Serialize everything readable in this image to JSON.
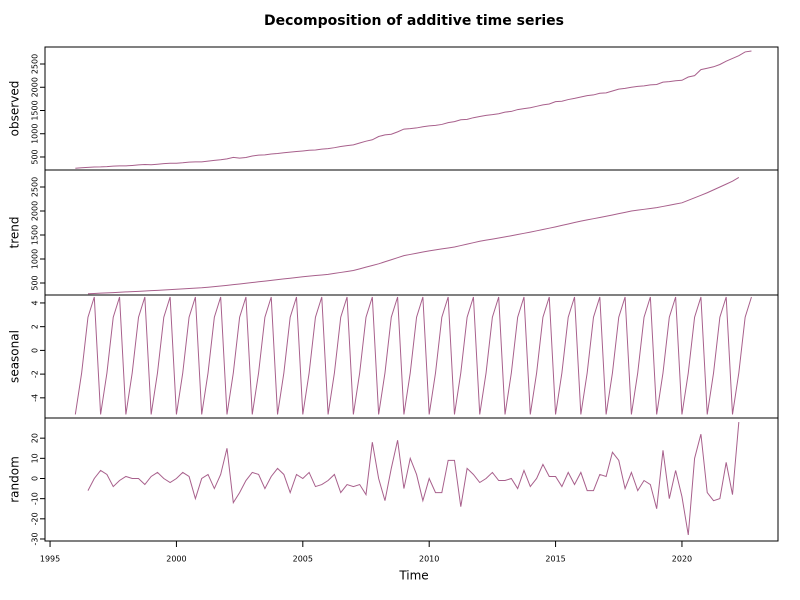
{
  "chart_data": {
    "type": "line",
    "title": "Decomposition of additive time series",
    "xlabel": "Time",
    "color": "#a8608c",
    "x": [
      1996,
      1996.25,
      1996.5,
      1996.75,
      1997,
      1997.25,
      1997.5,
      1997.75,
      1998,
      1998.25,
      1998.5,
      1998.75,
      1999,
      1999.25,
      1999.5,
      1999.75,
      2000,
      2000.25,
      2000.5,
      2000.75,
      2001,
      2001.25,
      2001.5,
      2001.75,
      2002,
      2002.25,
      2002.5,
      2002.75,
      2003,
      2003.25,
      2003.5,
      2003.75,
      2004,
      2004.25,
      2004.5,
      2004.75,
      2005,
      2005.25,
      2005.5,
      2005.75,
      2006,
      2006.25,
      2006.5,
      2006.75,
      2007,
      2007.25,
      2007.5,
      2007.75,
      2008,
      2008.25,
      2008.5,
      2008.75,
      2009,
      2009.25,
      2009.5,
      2009.75,
      2010,
      2010.25,
      2010.5,
      2010.75,
      2011,
      2011.25,
      2011.5,
      2011.75,
      2012,
      2012.25,
      2012.5,
      2012.75,
      2013,
      2013.25,
      2013.5,
      2013.75,
      2014,
      2014.25,
      2014.5,
      2014.75,
      2015,
      2015.25,
      2015.5,
      2015.75,
      2016,
      2016.25,
      2016.5,
      2016.75,
      2017,
      2017.25,
      2017.5,
      2017.75,
      2018,
      2018.25,
      2018.5,
      2018.75,
      2019,
      2019.25,
      2019.5,
      2019.75,
      2020,
      2020.25,
      2020.5,
      2020.75,
      2021,
      2021.25,
      2021.5,
      2021.75,
      2022,
      2022.25,
      2022.5,
      2022.75
    ],
    "xlim": [
      1994.8,
      2023.8
    ],
    "xticks": [
      1995,
      2000,
      2005,
      2010,
      2015,
      2020
    ],
    "panels": [
      {
        "ylabel": "observed",
        "ylim": [
          220,
          2866
        ],
        "yticks": [
          500,
          1000,
          1500,
          2000,
          2500
        ],
        "values": [
          258,
          268,
          276,
          285,
          286,
          292,
          303,
          310,
          309,
          318,
          330,
          337,
          334,
          345,
          358,
          366,
          366,
          375,
          390,
          396,
          395,
          412,
          428,
          440,
          460,
          492,
          475,
          490,
          520,
          540,
          545,
          565,
          575,
          590,
          605,
          618,
          630,
          645,
          650,
          668,
          680,
          700,
          725,
          745,
          760,
          800,
          840,
          870,
          940,
          975,
          990,
          1040,
          1100,
          1110,
          1125,
          1150,
          1170,
          1180,
          1200,
          1240,
          1260,
          1300,
          1310,
          1345,
          1370,
          1395,
          1410,
          1430,
          1465,
          1480,
          1520,
          1540,
          1560,
          1590,
          1620,
          1640,
          1690,
          1700,
          1735,
          1760,
          1790,
          1820,
          1835,
          1870,
          1880,
          1920,
          1960,
          1975,
          2000,
          2020,
          2030,
          2050,
          2060,
          2110,
          2120,
          2140,
          2150,
          2220,
          2250,
          2380,
          2410,
          2440,
          2490,
          2560,
          2620,
          2680,
          2760,
          2780
        ]
      },
      {
        "ylabel": "trend",
        "ylim": [
          250,
          2854
        ],
        "yticks": [
          500,
          1000,
          1500,
          2000,
          2500
        ],
        "values": [
          null,
          null,
          275,
          282,
          288,
          294,
          300,
          307,
          314,
          320,
          326,
          333,
          340,
          347,
          354,
          362,
          370,
          377,
          385,
          392,
          400,
          412,
          424,
          437,
          450,
          465,
          480,
          495,
          510,
          525,
          540,
          555,
          570,
          585,
          600,
          615,
          630,
          642,
          655,
          667,
          680,
          700,
          720,
          740,
          760,
          795,
          830,
          865,
          900,
          942,
          985,
          1027,
          1070,
          1095,
          1120,
          1145,
          1170,
          1190,
          1210,
          1230,
          1250,
          1280,
          1310,
          1340,
          1370,
          1392,
          1415,
          1437,
          1460,
          1485,
          1510,
          1535,
          1560,
          1587,
          1615,
          1642,
          1670,
          1700,
          1730,
          1760,
          1790,
          1815,
          1840,
          1865,
          1890,
          1917,
          1945,
          1972,
          2000,
          2017,
          2035,
          2052,
          2070,
          2095,
          2120,
          2145,
          2170,
          2222,
          2275,
          2327,
          2380,
          2440,
          2500,
          2560,
          2620,
          2700,
          null,
          null
        ]
      },
      {
        "ylabel": "seasonal",
        "ylim": [
          -5.7,
          4.67
        ],
        "yticks": [
          -4,
          -2,
          0,
          2,
          4
        ],
        "values": [
          -5.4,
          -1.9,
          2.8,
          4.5,
          -5.4,
          -1.9,
          2.8,
          4.5,
          -5.4,
          -1.9,
          2.8,
          4.5,
          -5.4,
          -1.9,
          2.8,
          4.5,
          -5.4,
          -1.9,
          2.8,
          4.5,
          -5.4,
          -1.9,
          2.8,
          4.5,
          -5.4,
          -1.9,
          2.8,
          4.5,
          -5.4,
          -1.9,
          2.8,
          4.5,
          -5.4,
          -1.9,
          2.8,
          4.5,
          -5.4,
          -1.9,
          2.8,
          4.5,
          -5.4,
          -1.9,
          2.8,
          4.5,
          -5.4,
          -1.9,
          2.8,
          4.5,
          -5.4,
          -1.9,
          2.8,
          4.5,
          -5.4,
          -1.9,
          2.8,
          4.5,
          -5.4,
          -1.9,
          2.8,
          4.5,
          -5.4,
          -1.9,
          2.8,
          4.5,
          -5.4,
          -1.9,
          2.8,
          4.5,
          -5.4,
          -1.9,
          2.8,
          4.5,
          -5.4,
          -1.9,
          2.8,
          4.5,
          -5.4,
          -1.9,
          2.8,
          4.5,
          -5.4,
          -1.9,
          2.8,
          4.5,
          -5.4,
          -1.9,
          2.8,
          4.5,
          -5.4,
          -1.9,
          2.8,
          4.5,
          -5.4,
          -1.9,
          2.8,
          4.5,
          -5.4,
          -1.9,
          2.8,
          4.5,
          -5.4,
          -1.9,
          2.8,
          4.5,
          -5.4,
          -1.9,
          2.8,
          4.5
        ]
      },
      {
        "ylabel": "random",
        "ylim": [
          -31,
          30
        ],
        "yticks": [
          -30,
          -20,
          -10,
          0,
          10,
          20
        ],
        "values": [
          null,
          null,
          -6,
          0,
          4,
          2,
          -4,
          -1,
          1,
          0,
          0,
          -3,
          1,
          3,
          0,
          -2,
          0,
          3,
          1,
          -10,
          0,
          2,
          -5,
          2,
          15,
          -12,
          -7,
          -1,
          3,
          2,
          -5,
          1,
          5,
          2,
          -7,
          2,
          0,
          3,
          -4,
          -3,
          -1,
          2,
          -7,
          -3,
          -4,
          -3,
          -8,
          18,
          0,
          -11,
          5,
          19,
          -5,
          10,
          2,
          -11,
          0,
          -7,
          -7,
          9,
          9,
          -14,
          5,
          2,
          -2,
          0,
          3,
          -1,
          -1,
          0,
          -5,
          4,
          -4,
          0,
          7,
          1,
          1,
          -4,
          3,
          -3,
          3,
          -6,
          -6,
          2,
          1,
          13,
          9,
          -5,
          3,
          -6,
          -1,
          -3,
          -15,
          14,
          -10,
          4,
          -9,
          -28,
          10,
          22,
          -7,
          -11,
          -10,
          8,
          -8,
          28,
          null,
          null
        ]
      }
    ]
  }
}
